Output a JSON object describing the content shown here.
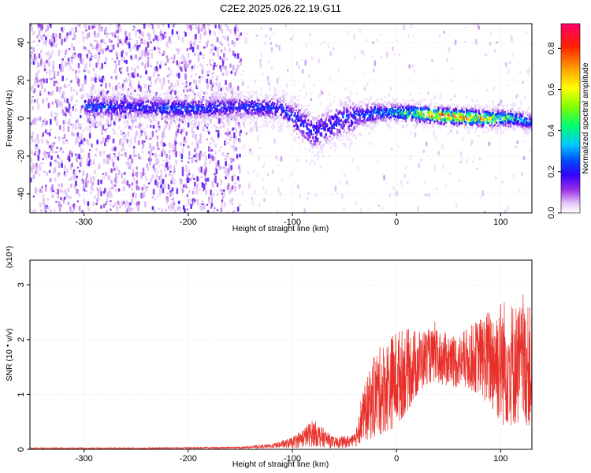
{
  "title": "C2E2.2025.026.22.19.G11",
  "colors": {
    "snr_line": "#e8302a",
    "axis": "#000000"
  },
  "chart_data": [
    {
      "type": "heatmap",
      "title": "C2E2.2025.026.22.19.G11",
      "xlabel": "Height of straight line (km)",
      "ylabel": "Frequency (Hz)",
      "xlim": [
        -352,
        130
      ],
      "ylim": [
        -50,
        50
      ],
      "xticks": [
        -300,
        -200,
        -100,
        0,
        100
      ],
      "yticks": [
        -40,
        -20,
        0,
        20,
        40
      ],
      "colorbar": {
        "label": "Normalized spectral amplitude",
        "range": [
          0,
          0.92
        ],
        "ticks": [
          0.0,
          0.2,
          0.4,
          0.6,
          0.8
        ],
        "colormap": [
          "#ffffff",
          "#d9b3f5",
          "#8a2be2",
          "#3300ff",
          "#0055ff",
          "#00ccff",
          "#00ff66",
          "#aaff00",
          "#ffff00",
          "#ffaa00",
          "#ff3300",
          "#ff0066"
        ]
      },
      "grid": true,
      "features": {
        "noisy_region_x": [
          -352,
          -150
        ],
        "signal_ridge": [
          {
            "x": -290,
            "freq": 6,
            "amp": 0.35
          },
          {
            "x": -250,
            "freq": 6,
            "amp": 0.3
          },
          {
            "x": -210,
            "freq": 5,
            "amp": 0.35
          },
          {
            "x": -150,
            "freq": 6,
            "amp": 0.3
          },
          {
            "x": -110,
            "freq": 5,
            "amp": 0.35
          },
          {
            "x": -80,
            "freq": -8,
            "amp": 0.3
          },
          {
            "x": -50,
            "freq": 0,
            "amp": 0.3
          },
          {
            "x": -20,
            "freq": 3,
            "amp": 0.4
          },
          {
            "x": 0,
            "freq": 3,
            "amp": 0.5
          },
          {
            "x": 30,
            "freq": 2,
            "amp": 0.75
          },
          {
            "x": 50,
            "freq": 1,
            "amp": 0.85
          },
          {
            "x": 80,
            "freq": 0,
            "amp": 0.75
          },
          {
            "x": 110,
            "freq": 0,
            "amp": 0.5
          },
          {
            "x": 128,
            "freq": -2,
            "amp": 0.35
          }
        ]
      }
    },
    {
      "type": "line",
      "xlabel": "Height of straight line (km)",
      "ylabel": "SNR (10 * v/v)",
      "y_multiplier": "(x10⁴)",
      "xlim": [
        -352,
        130
      ],
      "ylim": [
        0,
        3.45
      ],
      "xticks": [
        -300,
        -200,
        -100,
        0,
        100
      ],
      "yticks": [
        0,
        1,
        2,
        3
      ],
      "grid": true,
      "series": [
        {
          "color": "#e8302a",
          "envelope": [
            {
              "x": -352,
              "mean": 0.02,
              "spread": 0.01
            },
            {
              "x": -250,
              "mean": 0.02,
              "spread": 0.01
            },
            {
              "x": -150,
              "mean": 0.03,
              "spread": 0.015
            },
            {
              "x": -120,
              "mean": 0.06,
              "spread": 0.04
            },
            {
              "x": -100,
              "mean": 0.12,
              "spread": 0.1
            },
            {
              "x": -80,
              "mean": 0.3,
              "spread": 0.25
            },
            {
              "x": -60,
              "mean": 0.12,
              "spread": 0.1
            },
            {
              "x": -40,
              "mean": 0.15,
              "spread": 0.12
            },
            {
              "x": -35,
              "mean": 0.5,
              "spread": 0.4
            },
            {
              "x": -20,
              "mean": 1.0,
              "spread": 0.8
            },
            {
              "x": 0,
              "mean": 1.3,
              "spread": 0.9
            },
            {
              "x": 30,
              "mean": 1.7,
              "spread": 0.5
            },
            {
              "x": 60,
              "mean": 1.6,
              "spread": 0.5
            },
            {
              "x": 80,
              "mean": 1.7,
              "spread": 0.7
            },
            {
              "x": 100,
              "mean": 1.6,
              "spread": 1.2
            },
            {
              "x": 130,
              "mean": 1.5,
              "spread": 1.1
            }
          ]
        }
      ]
    }
  ]
}
